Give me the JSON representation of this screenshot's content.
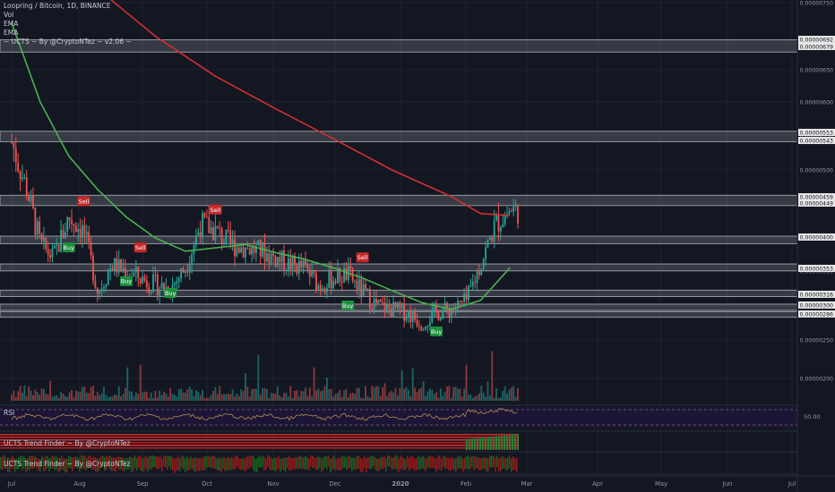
{
  "legend": {
    "title": "Loopring / Bitcoin, 1D, BINANCE",
    "vol": "Vol",
    "ema1": "EMA",
    "ema2": "EMA",
    "ucts": "~ UCTS ~ By @CryptoNTez ~ v2.06 ~"
  },
  "panes": {
    "rsi_label": "RSI",
    "rsi_value": "50.00",
    "trend1_label": "UCTS Trend Finder ~ By @CryptoNTez",
    "trend2_label": "UCTS Trend Finder ~ By @CryptoNTez"
  },
  "colors": {
    "background": "#131722",
    "up": "#26a69a",
    "down": "#ef5350",
    "ema_fast": "#4caf50",
    "ema_slow": "#d32f2f",
    "zone": "#9598a1",
    "rsi_bg": "#1d1535",
    "buy": "#1e8e3e",
    "sell": "#c62828"
  },
  "chart_data": {
    "type": "candlestick",
    "title": "Loopring / Bitcoin, 1D, BINANCE",
    "x_ticks": [
      "Jul",
      "Aug",
      "Sep",
      "Oct",
      "Nov",
      "Dec",
      "2020",
      "Feb",
      "Mar",
      "Apr",
      "May",
      "Jun",
      "Jul"
    ],
    "y_ticks": [
      "0.00000750",
      "0.00000650",
      "0.00000600",
      "0.00000550",
      "0.00000500",
      "0.00000450",
      "0.00000400",
      "0.00000350",
      "0.00000300",
      "0.00000250",
      "0.00000200"
    ],
    "zone_labels": [
      "0.00000692",
      "0.00000679",
      "0.00000553",
      "0.00000543",
      "0.00000459",
      "0.00000449",
      "0.00000400",
      "0.00000353",
      "0.00000316",
      "0.00000300",
      "0.00000286"
    ],
    "ylim": [
      1.8e-06,
      7.5e-06
    ],
    "zones": [
      [
        6.79e-06,
        6.92e-06
      ],
      [
        5.43e-06,
        5.53e-06
      ],
      [
        4.49e-06,
        4.59e-06
      ],
      [
        3.94e-06,
        4e-06
      ],
      [
        3.53e-06,
        3.58e-06
      ],
      [
        3.16e-06,
        3.2e-06
      ],
      [
        2.96e-06,
        3e-06
      ],
      [
        2.86e-06,
        2.89e-06
      ]
    ],
    "waypoints": [
      {
        "date": "Jul 1",
        "close": 5.4e-06
      },
      {
        "date": "Jul 8",
        "close": 4.7e-06
      },
      {
        "date": "Jul 14",
        "close": 3.9e-06
      },
      {
        "date": "Jul 20",
        "close": 3.7e-06
      },
      {
        "date": "Jul 27",
        "close": 4.3e-06
      },
      {
        "date": "Aug 3",
        "close": 4.1e-06
      },
      {
        "date": "Aug 10",
        "close": 3.2e-06
      },
      {
        "date": "Aug 17",
        "close": 3.6e-06
      },
      {
        "date": "Aug 24",
        "close": 3.5e-06
      },
      {
        "date": "Aug 31",
        "close": 3.4e-06
      },
      {
        "date": "Sep 7",
        "close": 3.3e-06
      },
      {
        "date": "Sep 14",
        "close": 3.25e-06
      },
      {
        "date": "Sep 21",
        "close": 3.55e-06
      },
      {
        "date": "Sep 28",
        "close": 4.2e-06
      },
      {
        "date": "Oct 5",
        "close": 4.1e-06
      },
      {
        "date": "Oct 12",
        "close": 3.9e-06
      },
      {
        "date": "Oct 19",
        "close": 3.85e-06
      },
      {
        "date": "Oct 26",
        "close": 3.8e-06
      },
      {
        "date": "Nov 2",
        "close": 3.7e-06
      },
      {
        "date": "Nov 9",
        "close": 3.6e-06
      },
      {
        "date": "Nov 16",
        "close": 3.55e-06
      },
      {
        "date": "Nov 23",
        "close": 3.3e-06
      },
      {
        "date": "Nov 30",
        "close": 3.4e-06
      },
      {
        "date": "Dec 7",
        "close": 3.45e-06
      },
      {
        "date": "Dec 14",
        "close": 3.2e-06
      },
      {
        "date": "Dec 21",
        "close": 3e-06
      },
      {
        "date": "Dec 28",
        "close": 2.95e-06
      },
      {
        "date": "Jan 4",
        "close": 2.9e-06
      },
      {
        "date": "Jan 11",
        "close": 2.75e-06
      },
      {
        "date": "Jan 18",
        "close": 2.9e-06
      },
      {
        "date": "Jan 25",
        "close": 2.95e-06
      },
      {
        "date": "Feb 1",
        "close": 3.05e-06
      },
      {
        "date": "Feb 8",
        "close": 3.6e-06
      },
      {
        "date": "Feb 15",
        "close": 4.2e-06
      },
      {
        "date": "Feb 22",
        "close": 4.4e-06
      }
    ],
    "ema_fast_points": [
      {
        "date": "Jul 1",
        "value": 7.2e-06
      },
      {
        "date": "Jul 14",
        "value": 6e-06
      },
      {
        "date": "Jul 27",
        "value": 5.2e-06
      },
      {
        "date": "Aug 10",
        "value": 4.7e-06
      },
      {
        "date": "Aug 24",
        "value": 4.3e-06
      },
      {
        "date": "Sep 7",
        "value": 4e-06
      },
      {
        "date": "Sep 21",
        "value": 3.8e-06
      },
      {
        "date": "Oct 5",
        "value": 3.85e-06
      },
      {
        "date": "Oct 19",
        "value": 3.9e-06
      },
      {
        "date": "Nov 2",
        "value": 3.78e-06
      },
      {
        "date": "Nov 16",
        "value": 3.68e-06
      },
      {
        "date": "Nov 30",
        "value": 3.55e-06
      },
      {
        "date": "Dec 14",
        "value": 3.4e-06
      },
      {
        "date": "Dec 28",
        "value": 3.22e-06
      },
      {
        "date": "Jan 11",
        "value": 3.05e-06
      },
      {
        "date": "Jan 25",
        "value": 2.95e-06
      },
      {
        "date": "Feb 8",
        "value": 3.08e-06
      },
      {
        "date": "Feb 22",
        "value": 3.55e-06
      }
    ],
    "ema_slow_points": [
      {
        "date": "Aug 10",
        "value": 7.7e-06
      },
      {
        "date": "Sep 7",
        "value": 7e-06
      },
      {
        "date": "Oct 5",
        "value": 6.4e-06
      },
      {
        "date": "Nov 2",
        "value": 5.9e-06
      },
      {
        "date": "Nov 30",
        "value": 5.45e-06
      },
      {
        "date": "Dec 28",
        "value": 5e-06
      },
      {
        "date": "Jan 25",
        "value": 4.6e-06
      },
      {
        "date": "Feb 8",
        "value": 4.35e-06
      },
      {
        "date": "Feb 22",
        "value": 4.32e-06
      }
    ],
    "signals": [
      {
        "type": "Buy",
        "date": "Jul 27",
        "price": 3.85e-06
      },
      {
        "type": "Sell",
        "date": "Aug 3",
        "price": 4.52e-06
      },
      {
        "type": "Buy",
        "date": "Aug 24",
        "price": 3.35e-06
      },
      {
        "type": "Sell",
        "date": "Aug 31",
        "price": 3.85e-06
      },
      {
        "type": "Buy",
        "date": "Sep 14",
        "price": 3.18e-06
      },
      {
        "type": "Sell",
        "date": "Oct 5",
        "price": 4.4e-06
      },
      {
        "type": "Sell",
        "date": "Dec 14",
        "price": 3.7e-06
      },
      {
        "type": "Buy",
        "date": "Dec 7",
        "price": 3e-06
      },
      {
        "type": "Buy",
        "date": "Jan 18",
        "price": 2.62e-06
      }
    ]
  }
}
